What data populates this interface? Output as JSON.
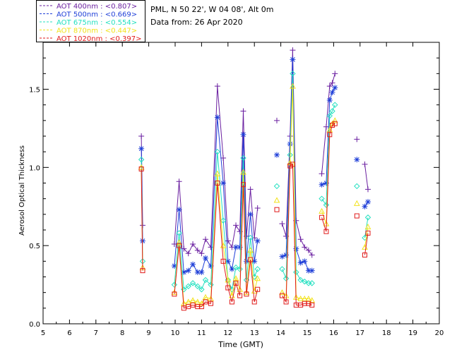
{
  "chart_data": {
    "type": "line",
    "header": {
      "site": "PML, N 50 22', W 04 08', Alt 0m",
      "date": "Data from: 26 Apr 2020"
    },
    "xlabel": "Time (GMT)",
    "ylabel": "Aerosol Optical Thickness",
    "xlim": [
      5,
      20
    ],
    "ylim": [
      0,
      1.8
    ],
    "x_ticks": [
      5,
      6,
      7,
      8,
      9,
      10,
      11,
      12,
      13,
      14,
      15,
      16,
      17,
      18,
      19,
      20
    ],
    "y_ticks": [
      0.0,
      0.5,
      1.0,
      1.5
    ],
    "y_tick_labels": [
      "0.0",
      "0.5",
      "1.0",
      "1.5"
    ],
    "legend": {
      "placement": "top-left outside",
      "entries": [
        {
          "label": "AOT  400nm : ",
          "value": "<0.807>",
          "color": "#6a1fa0"
        },
        {
          "label": "AOT  500nm : ",
          "value": "<0.669>",
          "color": "#1f3fd8"
        },
        {
          "label": "AOT  675nm : ",
          "value": "<0.554>",
          "color": "#22e0c0"
        },
        {
          "label": "AOT  870nm : ",
          "value": "<0.447>",
          "color": "#f2e21a"
        },
        {
          "label": "AOT 1020nm : ",
          "value": "<0.397>",
          "color": "#e01a1a"
        }
      ]
    },
    "series": [
      {
        "name": "AOT  400nm",
        "color": "#6a1fa0",
        "marker": "plus",
        "segments": [
          [
            [
              8.72,
              1.2
            ],
            [
              8.77,
              0.63
            ]
          ],
          [
            [
              9.97,
              0.51
            ],
            [
              10.15,
              0.91
            ],
            [
              10.33,
              0.48
            ],
            [
              10.5,
              0.45
            ],
            [
              10.67,
              0.51
            ],
            [
              10.85,
              0.47
            ],
            [
              11.0,
              0.45
            ],
            [
              11.15,
              0.54
            ],
            [
              11.35,
              0.49
            ],
            [
              11.6,
              1.52
            ],
            [
              11.82,
              1.06
            ],
            [
              12.0,
              0.53
            ],
            [
              12.15,
              0.49
            ],
            [
              12.3,
              0.63
            ],
            [
              12.45,
              0.59
            ],
            [
              12.58,
              1.36
            ],
            [
              12.7,
              0.56
            ],
            [
              12.85,
              0.86
            ],
            [
              13.0,
              0.55
            ],
            [
              13.12,
              0.74
            ]
          ],
          [
            [
              13.85,
              1.3
            ]
          ],
          [
            [
              14.05,
              0.64
            ],
            [
              14.2,
              0.56
            ],
            [
              14.35,
              1.2
            ],
            [
              14.45,
              1.75
            ],
            [
              14.58,
              0.66
            ],
            [
              14.75,
              0.54
            ],
            [
              14.9,
              0.49
            ],
            [
              15.05,
              0.47
            ],
            [
              15.18,
              0.44
            ]
          ],
          [
            [
              15.55,
              0.96
            ],
            [
              15.72,
              1.26
            ],
            [
              15.85,
              1.52
            ],
            [
              15.95,
              1.54
            ],
            [
              16.05,
              1.6
            ]
          ],
          [
            [
              16.88,
              1.18
            ]
          ],
          [
            [
              17.18,
              1.02
            ],
            [
              17.3,
              0.86
            ]
          ]
        ]
      },
      {
        "name": "AOT  500nm",
        "color": "#1f3fd8",
        "marker": "asterisk",
        "segments": [
          [
            [
              8.72,
              1.12
            ],
            [
              8.77,
              0.53
            ]
          ],
          [
            [
              9.97,
              0.37
            ],
            [
              10.15,
              0.73
            ],
            [
              10.33,
              0.33
            ],
            [
              10.5,
              0.34
            ],
            [
              10.67,
              0.38
            ],
            [
              10.85,
              0.33
            ],
            [
              11.0,
              0.33
            ],
            [
              11.15,
              0.42
            ],
            [
              11.35,
              0.37
            ],
            [
              11.6,
              1.32
            ],
            [
              11.82,
              0.9
            ],
            [
              12.0,
              0.4
            ],
            [
              12.15,
              0.35
            ],
            [
              12.3,
              0.49
            ],
            [
              12.45,
              0.49
            ],
            [
              12.58,
              1.21
            ],
            [
              12.7,
              0.4
            ],
            [
              12.85,
              0.7
            ],
            [
              13.0,
              0.4
            ],
            [
              13.12,
              0.53
            ]
          ],
          [
            [
              13.85,
              1.08
            ]
          ],
          [
            [
              14.05,
              0.43
            ],
            [
              14.2,
              0.44
            ],
            [
              14.35,
              1.15
            ],
            [
              14.45,
              1.69
            ],
            [
              14.58,
              0.48
            ],
            [
              14.75,
              0.39
            ],
            [
              14.9,
              0.4
            ],
            [
              15.05,
              0.34
            ],
            [
              15.18,
              0.34
            ]
          ],
          [
            [
              15.55,
              0.89
            ],
            [
              15.72,
              0.9
            ],
            [
              15.85,
              1.43
            ],
            [
              15.95,
              1.48
            ],
            [
              16.05,
              1.51
            ]
          ],
          [
            [
              16.88,
              1.05
            ]
          ],
          [
            [
              17.18,
              0.75
            ],
            [
              17.3,
              0.78
            ]
          ]
        ]
      },
      {
        "name": "AOT  675nm",
        "color": "#22e0c0",
        "marker": "diamond",
        "segments": [
          [
            [
              8.72,
              1.05
            ],
            [
              8.77,
              0.4
            ]
          ],
          [
            [
              9.97,
              0.25
            ],
            [
              10.15,
              0.58
            ],
            [
              10.33,
              0.22
            ],
            [
              10.5,
              0.24
            ],
            [
              10.67,
              0.26
            ],
            [
              10.85,
              0.24
            ],
            [
              11.0,
              0.22
            ],
            [
              11.15,
              0.28
            ],
            [
              11.35,
              0.25
            ],
            [
              11.6,
              1.1
            ],
            [
              11.82,
              0.66
            ],
            [
              12.0,
              0.28
            ],
            [
              12.15,
              0.22
            ],
            [
              12.3,
              0.36
            ],
            [
              12.45,
              0.35
            ],
            [
              12.58,
              1.06
            ],
            [
              12.7,
              0.28
            ],
            [
              12.85,
              0.55
            ],
            [
              13.0,
              0.3
            ],
            [
              13.12,
              0.35
            ]
          ],
          [
            [
              13.85,
              0.88
            ]
          ],
          [
            [
              14.05,
              0.35
            ],
            [
              14.2,
              0.29
            ],
            [
              14.35,
              1.08
            ],
            [
              14.45,
              1.6
            ],
            [
              14.58,
              0.33
            ],
            [
              14.75,
              0.28
            ],
            [
              14.9,
              0.27
            ],
            [
              15.05,
              0.26
            ],
            [
              15.18,
              0.26
            ]
          ],
          [
            [
              15.55,
              0.8
            ],
            [
              15.72,
              0.76
            ],
            [
              15.85,
              1.33
            ],
            [
              15.95,
              1.36
            ],
            [
              16.05,
              1.4
            ]
          ],
          [
            [
              16.88,
              0.88
            ]
          ],
          [
            [
              17.18,
              0.55
            ],
            [
              17.3,
              0.68
            ]
          ]
        ]
      },
      {
        "name": "AOT  870nm",
        "color": "#f2e21a",
        "marker": "triangle",
        "segments": [
          [
            [
              8.72,
              1.0
            ],
            [
              8.77,
              0.36
            ]
          ],
          [
            [
              9.97,
              0.2
            ],
            [
              10.15,
              0.52
            ],
            [
              10.33,
              0.13
            ],
            [
              10.5,
              0.14
            ],
            [
              10.67,
              0.15
            ],
            [
              10.85,
              0.14
            ],
            [
              11.0,
              0.13
            ],
            [
              11.15,
              0.17
            ],
            [
              11.35,
              0.16
            ],
            [
              11.6,
              0.96
            ],
            [
              11.82,
              0.5
            ],
            [
              12.0,
              0.28
            ],
            [
              12.15,
              0.18
            ],
            [
              12.3,
              0.29
            ],
            [
              12.45,
              0.22
            ],
            [
              12.58,
              0.97
            ],
            [
              12.7,
              0.2
            ],
            [
              12.85,
              0.47
            ],
            [
              13.0,
              0.21
            ],
            [
              13.12,
              0.29
            ]
          ],
          [
            [
              13.85,
              0.79
            ]
          ],
          [
            [
              14.05,
              0.2
            ],
            [
              14.2,
              0.18
            ],
            [
              14.35,
              1.03
            ],
            [
              14.45,
              1.52
            ],
            [
              14.58,
              0.17
            ],
            [
              14.75,
              0.16
            ],
            [
              14.9,
              0.16
            ],
            [
              15.05,
              0.16
            ],
            [
              15.18,
              0.15
            ]
          ],
          [
            [
              15.55,
              0.72
            ],
            [
              15.72,
              0.64
            ],
            [
              15.85,
              1.24
            ],
            [
              15.95,
              1.28
            ],
            [
              16.05,
              1.3
            ]
          ],
          [
            [
              16.88,
              0.77
            ]
          ],
          [
            [
              17.18,
              0.49
            ],
            [
              17.3,
              0.62
            ]
          ]
        ]
      },
      {
        "name": "AOT 1020nm",
        "color": "#e01a1a",
        "marker": "square",
        "segments": [
          [
            [
              8.72,
              0.99
            ],
            [
              8.77,
              0.34
            ]
          ],
          [
            [
              9.97,
              0.19
            ],
            [
              10.15,
              0.5
            ],
            [
              10.33,
              0.1
            ],
            [
              10.5,
              0.11
            ],
            [
              10.67,
              0.12
            ],
            [
              10.85,
              0.11
            ],
            [
              11.0,
              0.11
            ],
            [
              11.15,
              0.14
            ],
            [
              11.35,
              0.13
            ],
            [
              11.6,
              0.9
            ],
            [
              11.82,
              0.4
            ],
            [
              12.0,
              0.23
            ],
            [
              12.15,
              0.14
            ],
            [
              12.3,
              0.26
            ],
            [
              12.45,
              0.18
            ],
            [
              12.58,
              0.89
            ],
            [
              12.7,
              0.19
            ],
            [
              12.85,
              0.41
            ],
            [
              13.0,
              0.14
            ],
            [
              13.12,
              0.22
            ]
          ],
          [
            [
              13.85,
              0.73
            ]
          ],
          [
            [
              14.05,
              0.18
            ],
            [
              14.2,
              0.14
            ],
            [
              14.35,
              1.01
            ],
            [
              14.45,
              1.02
            ],
            [
              14.58,
              0.12
            ],
            [
              14.75,
              0.12
            ],
            [
              14.9,
              0.13
            ],
            [
              15.05,
              0.13
            ],
            [
              15.18,
              0.12
            ]
          ],
          [
            [
              15.55,
              0.68
            ],
            [
              15.72,
              0.59
            ],
            [
              15.85,
              1.21
            ],
            [
              15.95,
              1.27
            ],
            [
              16.05,
              1.28
            ]
          ],
          [
            [
              16.88,
              0.69
            ]
          ],
          [
            [
              17.18,
              0.44
            ],
            [
              17.3,
              0.58
            ]
          ]
        ]
      }
    ]
  }
}
